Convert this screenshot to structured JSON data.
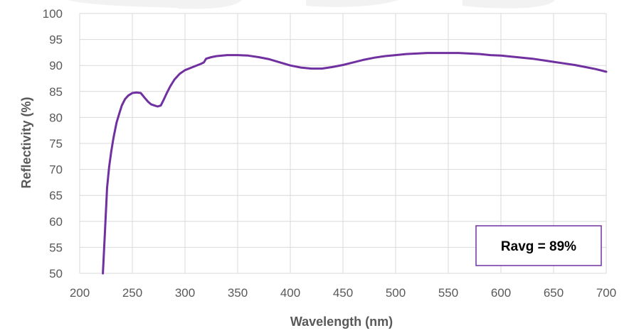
{
  "chart_data": {
    "type": "line",
    "title": "",
    "xlabel": "Wavelength (nm)",
    "ylabel": "Reflectivity (%)",
    "xlim": [
      200,
      700
    ],
    "ylim": [
      50,
      100
    ],
    "x_ticks": [
      200,
      250,
      300,
      350,
      400,
      450,
      500,
      550,
      600,
      650,
      700
    ],
    "y_ticks": [
      50,
      55,
      60,
      65,
      70,
      75,
      80,
      85,
      90,
      95,
      100
    ],
    "grid": true,
    "legend": "none",
    "line_color": "#7030a0",
    "annotation": "Ravg = 89%",
    "series": [
      {
        "x": [
          222,
          224,
          226,
          228,
          230,
          232,
          235,
          238,
          240,
          243,
          246,
          250,
          254,
          258,
          262,
          265,
          268,
          271,
          274,
          277,
          280,
          283,
          286,
          290,
          295,
          300,
          305,
          310,
          315,
          318,
          320,
          325,
          330,
          340,
          350,
          360,
          370,
          380,
          390,
          400,
          410,
          420,
          430,
          440,
          450,
          460,
          470,
          480,
          490,
          500,
          510,
          520,
          530,
          540,
          550,
          560,
          570,
          580,
          590,
          600,
          610,
          620,
          630,
          640,
          650,
          660,
          670,
          680,
          690,
          700
        ],
        "y": [
          50,
          58,
          66.5,
          70.5,
          73.5,
          76,
          79,
          81,
          82.3,
          83.5,
          84.2,
          84.7,
          84.8,
          84.7,
          83.7,
          83,
          82.5,
          82.3,
          82.1,
          82.3,
          83.5,
          84.8,
          86,
          87.3,
          88.4,
          89.1,
          89.5,
          89.9,
          90.3,
          90.6,
          91.3,
          91.6,
          91.8,
          92,
          92,
          91.9,
          91.6,
          91.2,
          90.6,
          90,
          89.6,
          89.4,
          89.4,
          89.7,
          90.1,
          90.6,
          91.1,
          91.5,
          91.8,
          92,
          92.2,
          92.3,
          92.4,
          92.4,
          92.4,
          92.4,
          92.3,
          92.2,
          92,
          91.9,
          91.7,
          91.5,
          91.3,
          91,
          90.7,
          90.4,
          90.1,
          89.7,
          89.3,
          88.8
        ]
      }
    ]
  }
}
